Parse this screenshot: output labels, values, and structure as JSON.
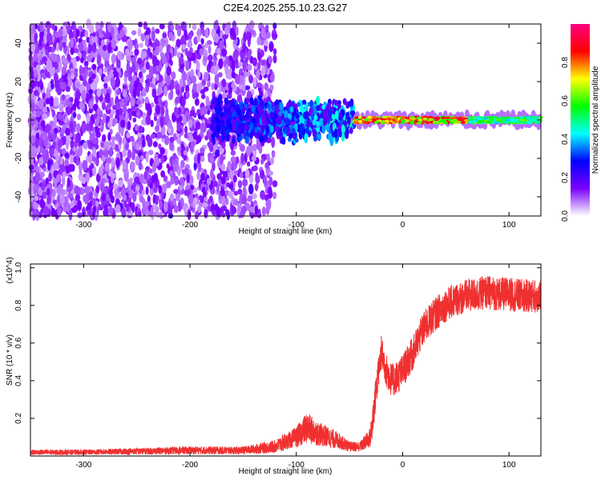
{
  "title": "C2E4.2025.255.10.23.G27",
  "chart_data": [
    {
      "type": "heatmap",
      "name": "spectrogram",
      "xlabel": "Height of straight line (km)",
      "ylabel": "Frequency (Hz)",
      "xlim": [
        -350,
        130
      ],
      "ylim": [
        -50,
        50
      ],
      "xticks": [
        "-300",
        "-200",
        "-100",
        "0",
        "100"
      ],
      "xtick_values": [
        -300,
        -200,
        -100,
        0,
        100
      ],
      "yticks": [
        "-40",
        "-20",
        "0",
        "20",
        "40"
      ],
      "ytick_values": [
        -40,
        -20,
        0,
        20,
        40
      ],
      "colorbar": {
        "label": "Normalized spectral amplitude",
        "range": [
          0,
          1
        ],
        "ticks": [
          "0.0",
          "0.2",
          "0.4",
          "0.6",
          "0.8"
        ],
        "tick_values": [
          0.0,
          0.2,
          0.4,
          0.6,
          0.8
        ],
        "colors": [
          "#ffffff",
          "#7b00ff",
          "#0000ff",
          "#00ffff",
          "#00ff00",
          "#ffff00",
          "#ff0000",
          "#ff0080"
        ]
      },
      "regions": [
        {
          "x_range": [
            -350,
            -130
          ],
          "freq_range": [
            -50,
            50
          ],
          "amplitude": [
            0.05,
            0.15
          ],
          "description": "broadband noise"
        },
        {
          "x_range": [
            -180,
            -45
          ],
          "freq_center": 0,
          "freq_width": 12,
          "amplitude": [
            0.15,
            0.45
          ]
        },
        {
          "x_range": [
            -45,
            130
          ],
          "freq_center": 0,
          "freq_width": 3,
          "amplitude": [
            0.55,
            0.95
          ]
        }
      ]
    },
    {
      "type": "line",
      "name": "snr",
      "xlabel": "Height of straight line (km)",
      "ylabel": "SNR (10 * v/v)",
      "y_multiplier": "(x10^4)",
      "xlim": [
        -350,
        130
      ],
      "ylim": [
        0,
        1.02
      ],
      "xticks": [
        "-300",
        "-200",
        "-100",
        "0",
        "100"
      ],
      "xtick_values": [
        -300,
        -200,
        -100,
        0,
        100
      ],
      "yticks": [
        "0.2",
        "0.4",
        "0.6",
        "0.8",
        "1.0"
      ],
      "ytick_values": [
        0.2,
        0.4,
        0.6,
        0.8,
        1.0
      ],
      "color": "#f03030",
      "series": [
        {
          "name": "SNR",
          "x": [
            -350,
            -300,
            -250,
            -200,
            -150,
            -120,
            -100,
            -90,
            -80,
            -70,
            -60,
            -50,
            -40,
            -30,
            -25,
            -20,
            -15,
            -10,
            -5,
            0,
            5,
            10,
            15,
            20,
            30,
            40,
            50,
            60,
            70,
            80,
            90,
            100,
            110,
            120,
            130
          ],
          "y": [
            0.02,
            0.02,
            0.025,
            0.03,
            0.03,
            0.05,
            0.1,
            0.15,
            0.12,
            0.1,
            0.08,
            0.05,
            0.05,
            0.1,
            0.35,
            0.55,
            0.45,
            0.4,
            0.42,
            0.45,
            0.5,
            0.55,
            0.62,
            0.68,
            0.75,
            0.8,
            0.83,
            0.85,
            0.86,
            0.87,
            0.86,
            0.86,
            0.85,
            0.85,
            0.85
          ]
        }
      ]
    }
  ]
}
